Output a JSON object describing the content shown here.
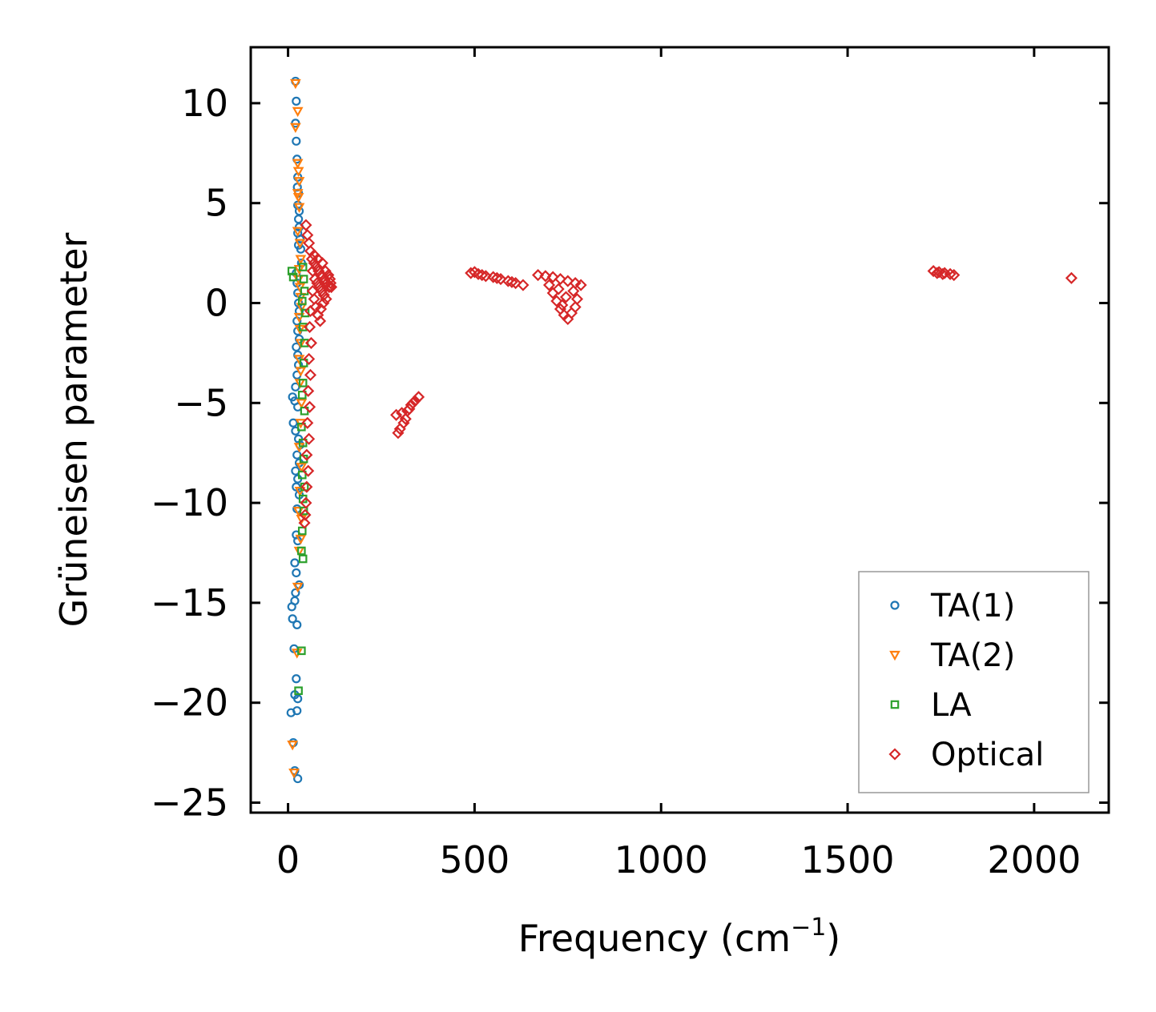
{
  "chart_data": {
    "type": "scatter",
    "title": "",
    "xlabel": "Frequency (cm",
    "xlabel_sup": "−1",
    "xlabel_suffix": ")",
    "ylabel": "Grüneisen parameter",
    "xlim": [
      -100,
      2200
    ],
    "ylim": [
      -25.5,
      12.8
    ],
    "xticks": [
      0,
      500,
      1000,
      1500,
      2000
    ],
    "xtick_labels": [
      "0",
      "500",
      "1000",
      "1500",
      "2000"
    ],
    "yticks": [
      10,
      5,
      0,
      -5,
      -10,
      -15,
      -20,
      -25
    ],
    "ytick_labels": [
      "10",
      "5",
      "0",
      "−5",
      "−10",
      "−15",
      "−20",
      "−25"
    ],
    "grid": false,
    "legend_position": "bottom-right",
    "series": [
      {
        "name": "TA(1)",
        "marker": "circle",
        "color": "#1f77b4",
        "points": [
          [
            20,
            11.1
          ],
          [
            22,
            10.1
          ],
          [
            20,
            9.0
          ],
          [
            22,
            8.1
          ],
          [
            24,
            7.2
          ],
          [
            26,
            6.3
          ],
          [
            25,
            5.8
          ],
          [
            28,
            5.5
          ],
          [
            26,
            4.9
          ],
          [
            30,
            4.6
          ],
          [
            28,
            4.2
          ],
          [
            30,
            3.8
          ],
          [
            26,
            3.5
          ],
          [
            32,
            3.2
          ],
          [
            28,
            2.9
          ],
          [
            34,
            2.7
          ],
          [
            36,
            2.0
          ],
          [
            22,
            1.5
          ],
          [
            24,
            1.0
          ],
          [
            26,
            0.5
          ],
          [
            28,
            0.0
          ],
          [
            30,
            -0.4
          ],
          [
            24,
            -0.9
          ],
          [
            26,
            -1.4
          ],
          [
            30,
            -1.8
          ],
          [
            22,
            -2.2
          ],
          [
            26,
            -2.6
          ],
          [
            28,
            -3.1
          ],
          [
            24,
            -3.6
          ],
          [
            20,
            -4.2
          ],
          [
            12,
            -4.7
          ],
          [
            18,
            -4.9
          ],
          [
            26,
            -5.2
          ],
          [
            14,
            -6.0
          ],
          [
            20,
            -6.4
          ],
          [
            28,
            -6.8
          ],
          [
            32,
            -7.1
          ],
          [
            24,
            -7.6
          ],
          [
            30,
            -8.0
          ],
          [
            20,
            -8.4
          ],
          [
            26,
            -8.8
          ],
          [
            22,
            -9.2
          ],
          [
            30,
            -9.6
          ],
          [
            24,
            -10.3
          ],
          [
            22,
            -11.6
          ],
          [
            26,
            -11.9
          ],
          [
            18,
            -13.0
          ],
          [
            22,
            -13.5
          ],
          [
            30,
            -14.1
          ],
          [
            20,
            -14.5
          ],
          [
            18,
            -14.9
          ],
          [
            10,
            -15.2
          ],
          [
            12,
            -15.8
          ],
          [
            24,
            -16.1
          ],
          [
            16,
            -17.3
          ],
          [
            22,
            -18.8
          ],
          [
            18,
            -19.6
          ],
          [
            26,
            -19.8
          ],
          [
            24,
            -20.4
          ],
          [
            8,
            -20.5
          ],
          [
            14,
            -22.0
          ],
          [
            18,
            -23.4
          ],
          [
            26,
            -23.8
          ]
        ]
      },
      {
        "name": "TA(2)",
        "marker": "triangle-down",
        "color": "#ff7f0e",
        "points": [
          [
            20,
            11.0
          ],
          [
            26,
            9.6
          ],
          [
            20,
            8.8
          ],
          [
            26,
            7.0
          ],
          [
            28,
            6.6
          ],
          [
            30,
            6.1
          ],
          [
            26,
            5.5
          ],
          [
            28,
            5.3
          ],
          [
            30,
            4.8
          ],
          [
            26,
            3.6
          ],
          [
            32,
            3.0
          ],
          [
            34,
            2.2
          ],
          [
            30,
            1.7
          ],
          [
            28,
            1.2
          ],
          [
            32,
            0.8
          ],
          [
            34,
            0.3
          ],
          [
            36,
            -0.2
          ],
          [
            30,
            -0.7
          ],
          [
            32,
            -1.3
          ],
          [
            34,
            -2.0
          ],
          [
            30,
            -2.8
          ],
          [
            34,
            -3.4
          ],
          [
            32,
            -4.0
          ],
          [
            36,
            -5.0
          ],
          [
            34,
            -6.0
          ],
          [
            30,
            -7.2
          ],
          [
            36,
            -8.2
          ],
          [
            32,
            -9.4
          ],
          [
            28,
            -10.4
          ],
          [
            36,
            -10.8
          ],
          [
            34,
            -11.8
          ],
          [
            30,
            -12.4
          ],
          [
            26,
            -14.2
          ],
          [
            24,
            -17.5
          ],
          [
            12,
            -22.1
          ],
          [
            16,
            -23.5
          ]
        ]
      },
      {
        "name": "LA",
        "marker": "square",
        "color": "#2ca02c",
        "points": [
          [
            10,
            1.6
          ],
          [
            14,
            1.3
          ],
          [
            40,
            1.8
          ],
          [
            42,
            1.2
          ],
          [
            44,
            0.6
          ],
          [
            38,
            0.1
          ],
          [
            46,
            -0.5
          ],
          [
            40,
            -1.2
          ],
          [
            44,
            -2.0
          ],
          [
            42,
            -3.0
          ],
          [
            40,
            -4.0
          ],
          [
            38,
            -4.6
          ],
          [
            44,
            -5.4
          ],
          [
            36,
            -6.2
          ],
          [
            40,
            -7.0
          ],
          [
            42,
            -7.8
          ],
          [
            38,
            -8.6
          ],
          [
            44,
            -9.2
          ],
          [
            40,
            -9.8
          ],
          [
            42,
            -10.4
          ],
          [
            38,
            -11.4
          ],
          [
            36,
            -12.4
          ],
          [
            40,
            -12.8
          ],
          [
            36,
            -17.4
          ],
          [
            28,
            -19.4
          ]
        ]
      },
      {
        "name": "Optical",
        "marker": "diamond",
        "color": "#d62728",
        "points": [
          [
            48,
            3.9
          ],
          [
            52,
            3.4
          ],
          [
            56,
            3.0
          ],
          [
            60,
            2.6
          ],
          [
            64,
            2.2
          ],
          [
            70,
            2.0
          ],
          [
            76,
            1.8
          ],
          [
            82,
            1.6
          ],
          [
            90,
            1.4
          ],
          [
            98,
            1.2
          ],
          [
            104,
            1.0
          ],
          [
            110,
            0.8
          ],
          [
            72,
            1.2
          ],
          [
            78,
            1.0
          ],
          [
            84,
            0.8
          ],
          [
            90,
            0.6
          ],
          [
            96,
            0.4
          ],
          [
            102,
            0.2
          ],
          [
            66,
            0.6
          ],
          [
            70,
            0.2
          ],
          [
            74,
            -0.2
          ],
          [
            80,
            -0.6
          ],
          [
            86,
            -0.9
          ],
          [
            60,
            -0.4
          ],
          [
            58,
            -1.2
          ],
          [
            62,
            -2.0
          ],
          [
            56,
            -2.8
          ],
          [
            60,
            -3.6
          ],
          [
            54,
            -4.4
          ],
          [
            58,
            -5.2
          ],
          [
            52,
            -6.0
          ],
          [
            56,
            -6.8
          ],
          [
            50,
            -7.6
          ],
          [
            54,
            -8.4
          ],
          [
            50,
            -9.2
          ],
          [
            48,
            -10.0
          ],
          [
            44,
            -11.0
          ],
          [
            46,
            -10.6
          ],
          [
            66,
            1.6
          ],
          [
            70,
            2.4
          ],
          [
            80,
            2.2
          ],
          [
            92,
            2.0
          ],
          [
            100,
            1.6
          ],
          [
            108,
            1.4
          ],
          [
            112,
            1.2
          ],
          [
            114,
            1.0
          ],
          [
            116,
            0.8
          ],
          [
            95,
            0.0
          ],
          [
            88,
            -0.3
          ],
          [
            490,
            1.5
          ],
          [
            510,
            1.45
          ],
          [
            530,
            1.35
          ],
          [
            550,
            1.3
          ],
          [
            570,
            1.2
          ],
          [
            590,
            1.1
          ],
          [
            610,
            1.0
          ],
          [
            630,
            0.9
          ],
          [
            500,
            1.55
          ],
          [
            520,
            1.4
          ],
          [
            560,
            1.25
          ],
          [
            600,
            1.05
          ],
          [
            670,
            1.4
          ],
          [
            690,
            1.35
          ],
          [
            710,
            1.3
          ],
          [
            730,
            1.2
          ],
          [
            750,
            1.1
          ],
          [
            770,
            1.0
          ],
          [
            785,
            0.9
          ],
          [
            700,
            0.9
          ],
          [
            710,
            0.5
          ],
          [
            720,
            0.1
          ],
          [
            730,
            -0.3
          ],
          [
            740,
            -0.6
          ],
          [
            750,
            -0.8
          ],
          [
            760,
            -0.5
          ],
          [
            770,
            -0.2
          ],
          [
            775,
            0.2
          ],
          [
            765,
            0.6
          ],
          [
            745,
            0.3
          ],
          [
            735,
            -0.1
          ],
          [
            725,
            0.7
          ],
          [
            290,
            -5.6
          ],
          [
            300,
            -6.3
          ],
          [
            310,
            -6.0
          ],
          [
            305,
            -5.5
          ],
          [
            320,
            -5.4
          ],
          [
            330,
            -5.1
          ],
          [
            340,
            -4.9
          ],
          [
            350,
            -4.7
          ],
          [
            315,
            -5.8
          ],
          [
            325,
            -5.3
          ],
          [
            335,
            -5.0
          ],
          [
            295,
            -6.5
          ],
          [
            1730,
            1.6
          ],
          [
            1745,
            1.55
          ],
          [
            1760,
            1.5
          ],
          [
            1775,
            1.45
          ],
          [
            1785,
            1.4
          ],
          [
            1740,
            1.5
          ],
          [
            1755,
            1.45
          ],
          [
            2100,
            1.25
          ]
        ]
      }
    ]
  }
}
